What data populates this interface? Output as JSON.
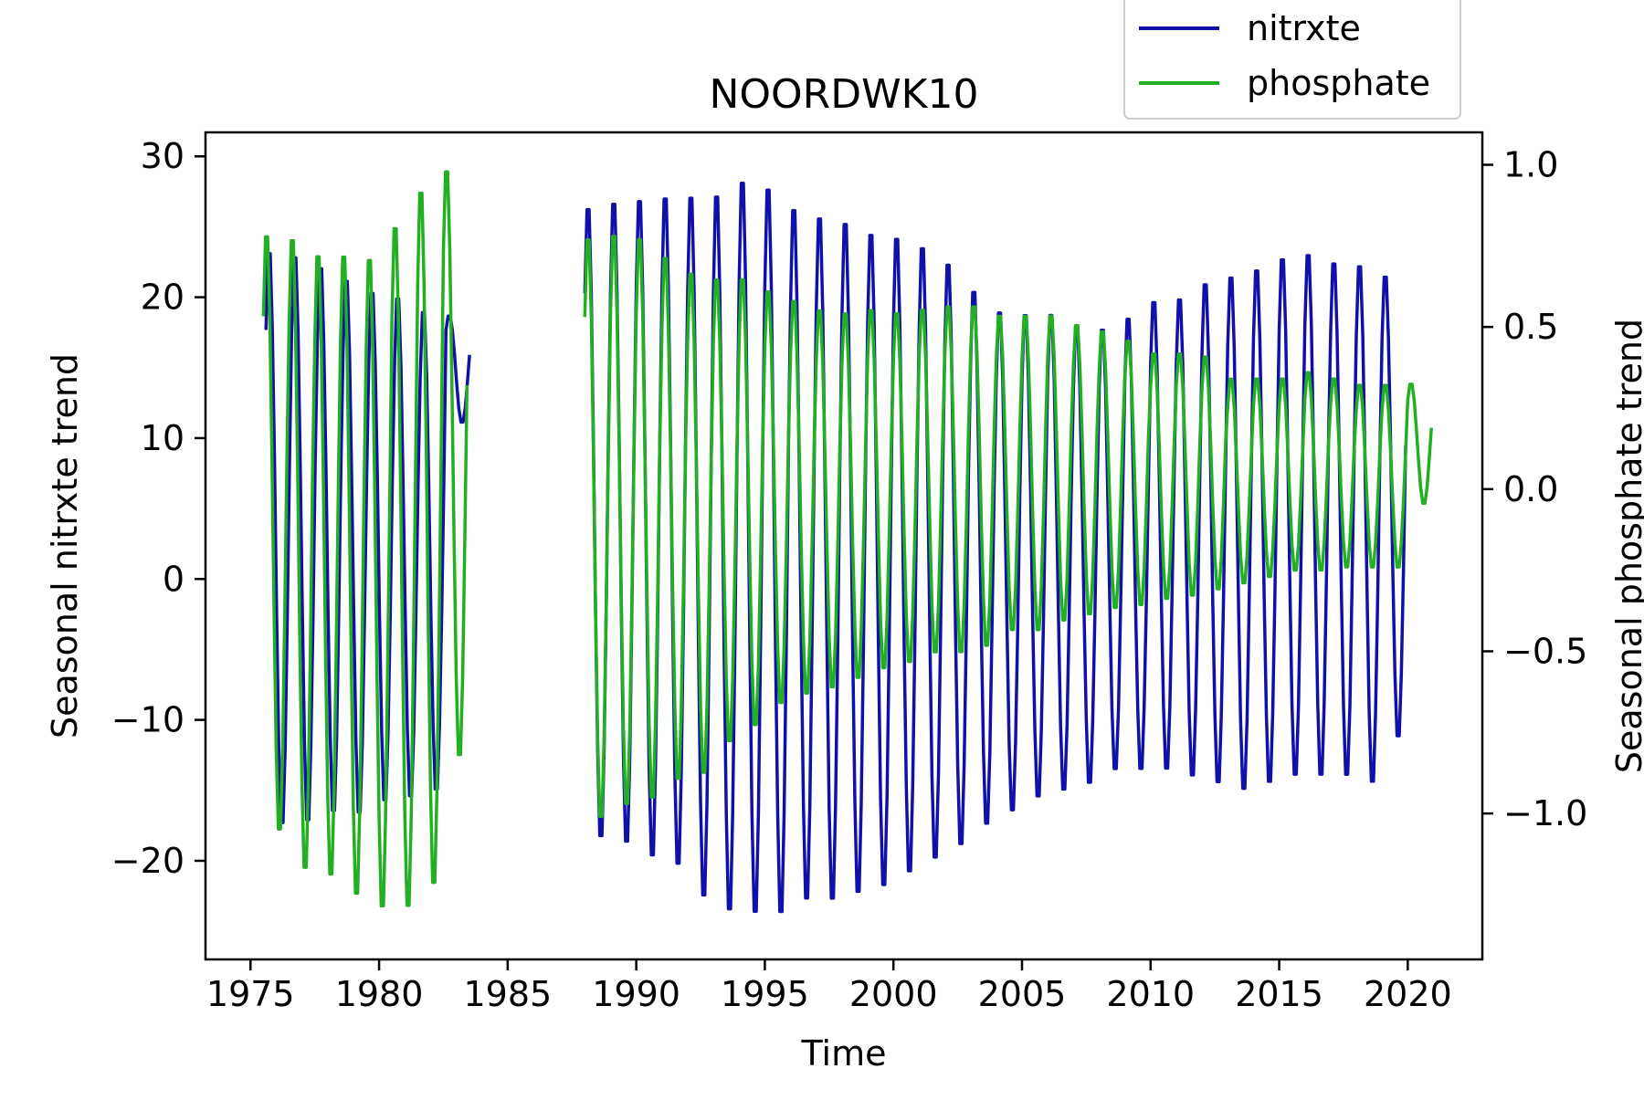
{
  "chart_data": {
    "type": "line",
    "title": "NOORDWK10",
    "xlabel": "Time",
    "ylabel_left": "Seasonal nitrxte trend",
    "ylabel_right": "Seasonal phosphate trend",
    "xlim": [
      1973.25,
      2022.9
    ],
    "ylim_left": [
      -27.0,
      31.7
    ],
    "ylim_right": [
      -1.45,
      1.1
    ],
    "x_ticks": [
      1975,
      1980,
      1985,
      1990,
      1995,
      2000,
      2005,
      2010,
      2015,
      2020
    ],
    "x_tick_labels": [
      "1975",
      "1980",
      "1985",
      "1990",
      "1995",
      "2000",
      "2005",
      "2010",
      "2015",
      "2020"
    ],
    "y_left_ticks": [
      -20,
      -10,
      0,
      10,
      20,
      30
    ],
    "y_left_tick_labels": [
      "−20",
      "−10",
      "0",
      "10",
      "20",
      "30"
    ],
    "y_right_ticks": [
      -1.0,
      -0.5,
      0.0,
      0.5,
      1.0
    ],
    "y_right_tick_labels": [
      "−1.0",
      "−0.5",
      "0.0",
      "0.5",
      "1.0"
    ],
    "grid": false,
    "legend_position": "top-right, above plot",
    "series": [
      {
        "name": "nitrxte",
        "axis": "left",
        "color": "#1111aa",
        "segments": [
          {
            "start": 1975.6,
            "step": 0.125,
            "cycles": [
              {
                "max": 23.8,
                "min": -18.0
              },
              {
                "max": 23.5,
                "min": -17.8
              },
              {
                "max": 22.7,
                "min": -17.1
              },
              {
                "max": 21.8,
                "min": -17.2
              },
              {
                "max": 20.9,
                "min": -16.3
              },
              {
                "max": 20.5,
                "min": -16.0
              },
              {
                "max": 19.5,
                "min": -15.5
              },
              {
                "max": 18.8,
                "min": 11.0
              }
            ]
          },
          {
            "start": 1988.0,
            "step": 0.125,
            "cycles": [
              {
                "max": 27.0,
                "min": -19.0
              },
              {
                "max": 27.4,
                "min": -19.4
              },
              {
                "max": 27.6,
                "min": -20.4
              },
              {
                "max": 27.8,
                "min": -21.0
              },
              {
                "max": 27.9,
                "min": -23.3
              },
              {
                "max": 28.0,
                "min": -24.3
              },
              {
                "max": 29.0,
                "min": -24.5
              },
              {
                "max": 28.5,
                "min": -24.5
              },
              {
                "max": 27.0,
                "min": -23.5
              },
              {
                "max": 26.4,
                "min": -23.5
              },
              {
                "max": 26.0,
                "min": -23.0
              },
              {
                "max": 25.2,
                "min": -22.5
              },
              {
                "max": 24.9,
                "min": -21.5
              },
              {
                "max": 24.2,
                "min": -20.5
              },
              {
                "max": 23.0,
                "min": -19.5
              },
              {
                "max": 21.0,
                "min": -18.0
              },
              {
                "max": 19.5,
                "min": -17.0
              },
              {
                "max": 19.3,
                "min": -16.0
              },
              {
                "max": 19.3,
                "min": -15.5
              },
              {
                "max": 18.5,
                "min": -15.0
              },
              {
                "max": 18.2,
                "min": -14.0
              },
              {
                "max": 19.0,
                "min": -14.0
              },
              {
                "max": 20.2,
                "min": -14.0
              },
              {
                "max": 20.4,
                "min": -14.5
              },
              {
                "max": 21.5,
                "min": -15.0
              },
              {
                "max": 22.0,
                "min": -15.5
              },
              {
                "max": 22.5,
                "min": -15.0
              },
              {
                "max": 23.3,
                "min": -14.5
              },
              {
                "max": 23.6,
                "min": -14.5
              },
              {
                "max": 23.0,
                "min": -14.5
              },
              {
                "max": 22.8,
                "min": -15.0
              },
              {
                "max": 22.0,
                "min": -11.7
              }
            ]
          }
        ]
      },
      {
        "name": "phosphate",
        "axis": "right",
        "color": "#22b022",
        "segments": [
          {
            "start": 1975.5,
            "step": 0.125,
            "cycles": [
              {
                "max": 0.81,
                "min": -1.08
              },
              {
                "max": 0.8,
                "min": -1.2
              },
              {
                "max": 0.75,
                "min": -1.22
              },
              {
                "max": 0.75,
                "min": -1.28
              },
              {
                "max": 0.74,
                "min": -1.32
              },
              {
                "max": 0.84,
                "min": -1.32
              },
              {
                "max": 0.95,
                "min": -1.25
              },
              {
                "max": 1.01,
                "min": -0.85
              }
            ]
          },
          {
            "start": 1988.0,
            "step": 0.125,
            "cycles": [
              {
                "max": 0.8,
                "min": -1.04
              },
              {
                "max": 0.81,
                "min": -1.0
              },
              {
                "max": 0.8,
                "min": -0.98
              },
              {
                "max": 0.74,
                "min": -0.92
              },
              {
                "max": 0.69,
                "min": -0.9
              },
              {
                "max": 0.67,
                "min": -0.8
              },
              {
                "max": 0.67,
                "min": -0.75
              },
              {
                "max": 0.63,
                "min": -0.68
              },
              {
                "max": 0.6,
                "min": -0.65
              },
              {
                "max": 0.57,
                "min": -0.63
              },
              {
                "max": 0.56,
                "min": -0.6
              },
              {
                "max": 0.57,
                "min": -0.57
              },
              {
                "max": 0.56,
                "min": -0.55
              },
              {
                "max": 0.57,
                "min": -0.52
              },
              {
                "max": 0.58,
                "min": -0.52
              },
              {
                "max": 0.58,
                "min": -0.5
              },
              {
                "max": 0.55,
                "min": -0.45
              },
              {
                "max": 0.55,
                "min": -0.45
              },
              {
                "max": 0.55,
                "min": -0.42
              },
              {
                "max": 0.52,
                "min": -0.4
              },
              {
                "max": 0.5,
                "min": -0.38
              },
              {
                "max": 0.47,
                "min": -0.37
              },
              {
                "max": 0.43,
                "min": -0.35
              },
              {
                "max": 0.43,
                "min": -0.34
              },
              {
                "max": 0.42,
                "min": -0.32
              },
              {
                "max": 0.35,
                "min": -0.3
              },
              {
                "max": 0.35,
                "min": -0.28
              },
              {
                "max": 0.35,
                "min": -0.26
              },
              {
                "max": 0.37,
                "min": -0.26
              },
              {
                "max": 0.35,
                "min": -0.25
              },
              {
                "max": 0.33,
                "min": -0.25
              },
              {
                "max": 0.33,
                "min": -0.25
              },
              {
                "max": 0.33,
                "min": -0.05
              }
            ]
          }
        ]
      }
    ]
  }
}
